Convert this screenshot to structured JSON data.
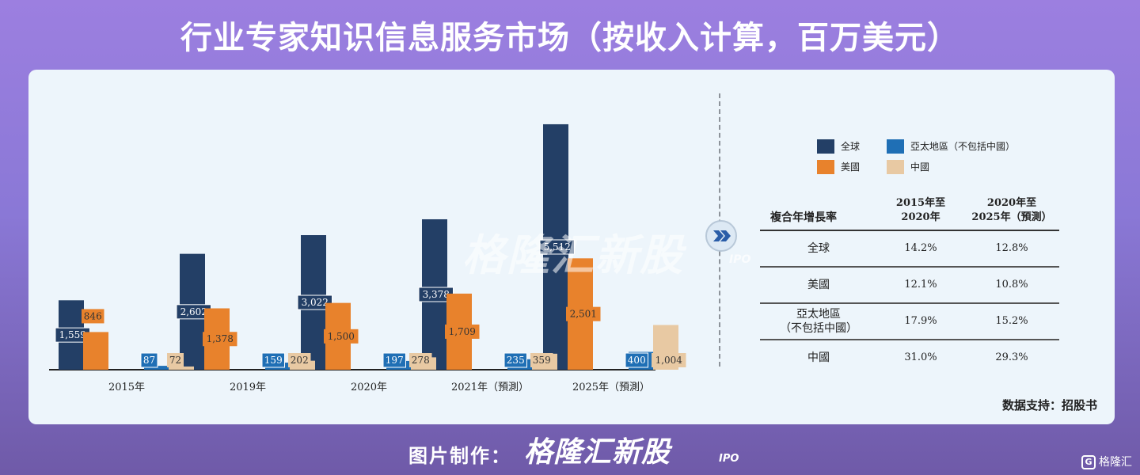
{
  "title": "行业专家知识信息服务市场（按收入计算，百万美元）",
  "watermark": {
    "brand": "格隆汇新股",
    "suffix": "IPO"
  },
  "legend": [
    {
      "label": "全球",
      "color": "#233f66"
    },
    {
      "label": "亞太地區（不包括中國）",
      "color": "#1f6fb5"
    },
    {
      "label": "美國",
      "color": "#e8822c"
    },
    {
      "label": "中國",
      "color": "#e8c9a3"
    }
  ],
  "chart_data": {
    "type": "bar",
    "categories": [
      "2015年",
      "2019年",
      "2020年",
      "2021年（預測）",
      "2025年（預測）"
    ],
    "series": [
      {
        "name": "全球",
        "color": "#233f66",
        "values": [
          1559,
          2602,
          3022,
          3378,
          5512
        ],
        "labels": [
          "1,559",
          "2,602",
          "3,022",
          "3,378",
          "5,512"
        ]
      },
      {
        "name": "美國",
        "color": "#e8822c",
        "values": [
          846,
          1378,
          1500,
          1709,
          2501
        ],
        "labels": [
          "846",
          "1,378",
          "1,500",
          "1,709",
          "2,501"
        ]
      },
      {
        "name": "亞太地區（不包括中國）",
        "color": "#1f6fb5",
        "values": [
          87,
          159,
          197,
          235,
          400
        ],
        "labels": [
          "87",
          "159",
          "197",
          "235",
          "400"
        ]
      },
      {
        "name": "中國",
        "color": "#e8c9a3",
        "values": [
          72,
          202,
          278,
          359,
          1004
        ],
        "labels": [
          "72",
          "202",
          "278",
          "359",
          "1,004"
        ]
      }
    ],
    "ylim": [
      0,
      5600
    ],
    "grid": false,
    "legend_position": "right"
  },
  "cagr_table": {
    "header": [
      "複合年增長率",
      "2015年至\n2020年",
      "2020年至\n2025年（預測）"
    ],
    "rows": [
      {
        "region": "全球",
        "p1": "14.2%",
        "p2": "12.8%"
      },
      {
        "region": "美國",
        "p1": "12.1%",
        "p2": "10.8%"
      },
      {
        "region": "亞太地區\n（不包括中國）",
        "p1": "17.9%",
        "p2": "15.2%"
      },
      {
        "region": "中國",
        "p1": "31.0%",
        "p2": "29.3%"
      }
    ]
  },
  "source": "数据支持：招股书",
  "footer": {
    "label": "图片制作：",
    "brand": "格隆汇新股",
    "ipo": "IPO",
    "logo_text": "格隆汇"
  }
}
